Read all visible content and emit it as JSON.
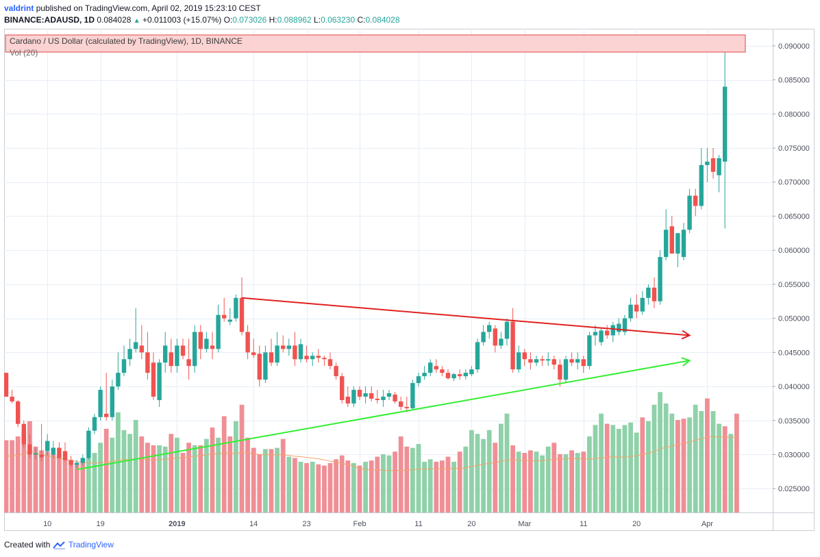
{
  "header": {
    "author": "valdrint",
    "published_text": "published on TradingView.com, April 02, 2019 15:23:10 CEST",
    "symbol": "BINANCE:ADAUSD, 1D",
    "last": "0.084028",
    "change": "+0.011003 (+15.07%)",
    "o_label": "O:",
    "o_value": "0.073026",
    "h_label": "H:",
    "h_value": "0.088962",
    "l_label": "L:",
    "l_value": "0.063230",
    "c_label": "C:",
    "c_value": "0.084028"
  },
  "legend": {
    "series_title": "Cardano / US Dollar (calculated by TradingView), 1D, BINANCE",
    "vol_title": "Vol (20)"
  },
  "footer": {
    "created_with": "Created with",
    "brand": "TradingView"
  },
  "colors": {
    "up": "#26a69a",
    "down": "#ef5350",
    "vol_up": "#8fd1a9",
    "vol_down": "#ef8f95",
    "resistance": "#e02020",
    "support": "#33ee33",
    "ma": "#f5a26a",
    "grid": "#e6eef6",
    "legend_bg": "#fbd3d3",
    "legend_border": "#e04646"
  },
  "chart_data": {
    "type": "candlestick",
    "title": "Cardano / US Dollar (calculated by TradingView), 1D, BINANCE",
    "xlabel": "",
    "ylabel": "",
    "ylim": [
      0.0215,
      0.0925
    ],
    "y_ticks": [
      "0.090000",
      "0.085000",
      "0.080000",
      "0.075000",
      "0.070000",
      "0.065000",
      "0.060000",
      "0.055000",
      "0.050000",
      "0.045000",
      "0.040000",
      "0.035000",
      "0.030000",
      "0.025000"
    ],
    "x_ticks": [
      {
        "label": "10",
        "i": 7
      },
      {
        "label": "19",
        "i": 16
      },
      {
        "label": "2019",
        "i": 29,
        "bold": true
      },
      {
        "label": "14",
        "i": 42
      },
      {
        "label": "23",
        "i": 51
      },
      {
        "label": "Feb",
        "i": 60
      },
      {
        "label": "11",
        "i": 70
      },
      {
        "label": "20",
        "i": 79
      },
      {
        "label": "Mar",
        "i": 88
      },
      {
        "label": "11",
        "i": 98
      },
      {
        "label": "20",
        "i": 107
      },
      {
        "label": "Apr",
        "i": 119
      }
    ],
    "candles": [
      [
        0.042,
        0.042,
        0.0385,
        0.0385
      ],
      [
        0.0385,
        0.0395,
        0.0375,
        0.0378
      ],
      [
        0.0378,
        0.038,
        0.034,
        0.0345
      ],
      [
        0.0345,
        0.035,
        0.031,
        0.0315
      ],
      [
        0.0315,
        0.033,
        0.0295,
        0.03
      ],
      [
        0.03,
        0.031,
        0.0293,
        0.0302
      ],
      [
        0.03,
        0.0345,
        0.029,
        0.0296
      ],
      [
        0.0305,
        0.033,
        0.0298,
        0.032
      ],
      [
        0.03,
        0.032,
        0.0295,
        0.031
      ],
      [
        0.031,
        0.0318,
        0.0293,
        0.0295
      ],
      [
        0.0305,
        0.0318,
        0.029,
        0.0292
      ],
      [
        0.0292,
        0.0298,
        0.0282,
        0.0285
      ],
      [
        0.0285,
        0.0292,
        0.028,
        0.0288
      ],
      [
        0.0288,
        0.03,
        0.0284,
        0.0295
      ],
      [
        0.0295,
        0.034,
        0.0293,
        0.0335
      ],
      [
        0.0335,
        0.036,
        0.033,
        0.0355
      ],
      [
        0.0355,
        0.04,
        0.035,
        0.0395
      ],
      [
        0.036,
        0.042,
        0.035,
        0.0355
      ],
      [
        0.0355,
        0.041,
        0.035,
        0.04
      ],
      [
        0.04,
        0.045,
        0.0395,
        0.042
      ],
      [
        0.042,
        0.046,
        0.0415,
        0.044
      ],
      [
        0.044,
        0.047,
        0.043,
        0.0455
      ],
      [
        0.0455,
        0.0515,
        0.045,
        0.0465
      ],
      [
        0.046,
        0.049,
        0.044,
        0.045
      ],
      [
        0.045,
        0.048,
        0.041,
        0.042
      ],
      [
        0.0435,
        0.045,
        0.038,
        0.0385
      ],
      [
        0.038,
        0.044,
        0.037,
        0.0435
      ],
      [
        0.0435,
        0.048,
        0.042,
        0.046
      ],
      [
        0.045,
        0.047,
        0.042,
        0.043
      ],
      [
        0.043,
        0.047,
        0.042,
        0.046
      ],
      [
        0.046,
        0.047,
        0.044,
        0.0445
      ],
      [
        0.044,
        0.047,
        0.041,
        0.043
      ],
      [
        0.043,
        0.049,
        0.042,
        0.048
      ],
      [
        0.048,
        0.049,
        0.044,
        0.0455
      ],
      [
        0.0455,
        0.048,
        0.045,
        0.047
      ],
      [
        0.046,
        0.048,
        0.044,
        0.0455
      ],
      [
        0.0455,
        0.052,
        0.045,
        0.0505
      ],
      [
        0.0505,
        0.053,
        0.0495,
        0.05
      ],
      [
        0.0495,
        0.0515,
        0.049,
        0.0498
      ],
      [
        0.05,
        0.0535,
        0.0495,
        0.053
      ],
      [
        0.053,
        0.056,
        0.0475,
        0.048
      ],
      [
        0.048,
        0.049,
        0.044,
        0.045
      ],
      [
        0.045,
        0.047,
        0.0442,
        0.0446
      ],
      [
        0.0448,
        0.046,
        0.04,
        0.041
      ],
      [
        0.041,
        0.046,
        0.0405,
        0.045
      ],
      [
        0.045,
        0.047,
        0.043,
        0.0435
      ],
      [
        0.0435,
        0.048,
        0.043,
        0.046
      ],
      [
        0.046,
        0.0475,
        0.045,
        0.0455
      ],
      [
        0.0455,
        0.047,
        0.0445,
        0.046
      ],
      [
        0.046,
        0.048,
        0.043,
        0.044
      ],
      [
        0.044,
        0.047,
        0.0435,
        0.0462
      ],
      [
        0.0445,
        0.046,
        0.0435,
        0.044
      ],
      [
        0.044,
        0.045,
        0.043,
        0.0445
      ],
      [
        0.0445,
        0.0455,
        0.0435,
        0.0442
      ],
      [
        0.0442,
        0.0445,
        0.043,
        0.044
      ],
      [
        0.044,
        0.045,
        0.0425,
        0.043
      ],
      [
        0.043,
        0.0435,
        0.041,
        0.0415
      ],
      [
        0.0415,
        0.042,
        0.0375,
        0.038
      ],
      [
        0.0385,
        0.04,
        0.037,
        0.0375
      ],
      [
        0.0375,
        0.04,
        0.037,
        0.0395
      ],
      [
        0.0395,
        0.04,
        0.038,
        0.0385
      ],
      [
        0.0385,
        0.04,
        0.0375,
        0.039
      ],
      [
        0.039,
        0.04,
        0.0378,
        0.0382
      ],
      [
        0.0382,
        0.0395,
        0.0375,
        0.038
      ],
      [
        0.038,
        0.0395,
        0.037,
        0.0385
      ],
      [
        0.0385,
        0.0395,
        0.038,
        0.039
      ],
      [
        0.0388,
        0.0392,
        0.0375,
        0.0378
      ],
      [
        0.0378,
        0.0385,
        0.0365,
        0.037
      ],
      [
        0.037,
        0.0385,
        0.0362,
        0.0368
      ],
      [
        0.0368,
        0.041,
        0.0365,
        0.0405
      ],
      [
        0.0405,
        0.042,
        0.04,
        0.0415
      ],
      [
        0.0415,
        0.043,
        0.041,
        0.042
      ],
      [
        0.042,
        0.044,
        0.0415,
        0.0435
      ],
      [
        0.043,
        0.044,
        0.042,
        0.0425
      ],
      [
        0.0425,
        0.043,
        0.0415,
        0.042
      ],
      [
        0.042,
        0.0425,
        0.041,
        0.0412
      ],
      [
        0.0412,
        0.042,
        0.0408,
        0.0418
      ],
      [
        0.0418,
        0.0425,
        0.041,
        0.0415
      ],
      [
        0.0415,
        0.0425,
        0.041,
        0.042
      ],
      [
        0.0418,
        0.043,
        0.0415,
        0.0425
      ],
      [
        0.0425,
        0.047,
        0.042,
        0.0465
      ],
      [
        0.0465,
        0.049,
        0.046,
        0.048
      ],
      [
        0.048,
        0.0495,
        0.047,
        0.049
      ],
      [
        0.0485,
        0.049,
        0.045,
        0.046
      ],
      [
        0.046,
        0.048,
        0.0455,
        0.047
      ],
      [
        0.047,
        0.05,
        0.046,
        0.0495
      ],
      [
        0.0495,
        0.0515,
        0.042,
        0.0425
      ],
      [
        0.0425,
        0.046,
        0.042,
        0.045
      ],
      [
        0.045,
        0.0455,
        0.043,
        0.044
      ],
      [
        0.044,
        0.045,
        0.0425,
        0.0435
      ],
      [
        0.0435,
        0.0445,
        0.043,
        0.044
      ],
      [
        0.044,
        0.0445,
        0.043,
        0.0438
      ],
      [
        0.0438,
        0.045,
        0.043,
        0.044
      ],
      [
        0.044,
        0.0445,
        0.0425,
        0.0432
      ],
      [
        0.0432,
        0.044,
        0.04,
        0.041
      ],
      [
        0.041,
        0.0445,
        0.0405,
        0.044
      ],
      [
        0.044,
        0.045,
        0.043,
        0.0435
      ],
      [
        0.0435,
        0.045,
        0.0425,
        0.044
      ],
      [
        0.044,
        0.0445,
        0.042,
        0.043
      ],
      [
        0.043,
        0.048,
        0.0425,
        0.0475
      ],
      [
        0.0475,
        0.049,
        0.046,
        0.048
      ],
      [
        0.0465,
        0.0485,
        0.046,
        0.0482
      ],
      [
        0.0482,
        0.049,
        0.047,
        0.0475
      ],
      [
        0.0475,
        0.0495,
        0.0465,
        0.049
      ],
      [
        0.048,
        0.05,
        0.0475,
        0.0492
      ],
      [
        0.048,
        0.0505,
        0.0475,
        0.05
      ],
      [
        0.05,
        0.053,
        0.0495,
        0.052
      ],
      [
        0.052,
        0.0535,
        0.05,
        0.051
      ],
      [
        0.051,
        0.054,
        0.0505,
        0.053
      ],
      [
        0.053,
        0.055,
        0.052,
        0.0545
      ],
      [
        0.0545,
        0.056,
        0.0515,
        0.0525
      ],
      [
        0.0525,
        0.06,
        0.052,
        0.059
      ],
      [
        0.059,
        0.066,
        0.0585,
        0.063
      ],
      [
        0.0635,
        0.065,
        0.06,
        0.0595
      ],
      [
        0.0595,
        0.0625,
        0.0575,
        0.0625
      ],
      [
        0.059,
        0.064,
        0.0585,
        0.063
      ],
      [
        0.063,
        0.069,
        0.0625,
        0.068
      ],
      [
        0.068,
        0.069,
        0.065,
        0.0665
      ],
      [
        0.0665,
        0.075,
        0.066,
        0.0725
      ],
      [
        0.0725,
        0.075,
        0.07,
        0.073
      ],
      [
        0.0735,
        0.075,
        0.0705,
        0.0715
      ],
      [
        0.071,
        0.074,
        0.0685,
        0.0735
      ],
      [
        0.073,
        0.089,
        0.0632,
        0.084
      ]
    ],
    "volume_up": [
      false,
      false,
      false,
      false,
      false,
      false,
      false,
      false,
      false,
      false,
      false,
      false,
      false,
      false,
      true,
      true,
      true,
      false,
      true,
      true,
      true,
      true,
      true,
      false,
      false,
      false,
      true,
      true,
      false,
      true,
      false,
      false,
      true,
      false,
      true,
      false,
      true,
      false,
      false,
      true,
      false,
      false,
      false,
      false,
      true,
      false,
      true,
      false,
      true,
      false,
      true,
      false,
      true,
      false,
      false,
      false,
      false,
      false,
      false,
      true,
      false,
      true,
      false,
      false,
      true,
      true,
      false,
      false,
      false,
      true,
      true,
      true,
      true,
      false,
      false,
      false,
      true,
      false,
      true,
      true,
      true,
      true,
      true,
      false,
      true,
      true,
      false,
      true,
      false,
      false,
      true,
      true,
      true,
      false,
      false,
      true,
      false,
      true,
      false,
      true,
      true,
      true,
      false,
      true,
      true,
      true,
      true,
      true,
      false,
      true,
      true,
      true,
      true,
      true,
      false,
      false,
      true,
      true,
      true,
      false,
      true,
      true,
      false,
      true
    ],
    "volume_level": [
      0.57,
      0.57,
      0.6,
      0.64,
      0.72,
      0.52,
      0.49,
      0.48,
      0.46,
      0.44,
      0.42,
      0.4,
      0.39,
      0.4,
      0.43,
      0.47,
      0.55,
      0.66,
      0.59,
      0.79,
      0.65,
      0.62,
      0.73,
      0.6,
      0.55,
      0.53,
      0.53,
      0.52,
      0.62,
      0.59,
      0.47,
      0.55,
      0.53,
      0.53,
      0.58,
      0.67,
      0.59,
      0.76,
      0.6,
      0.72,
      0.85,
      0.59,
      0.51,
      0.46,
      0.5,
      0.5,
      0.51,
      0.58,
      0.44,
      0.43,
      0.4,
      0.39,
      0.4,
      0.38,
      0.37,
      0.39,
      0.42,
      0.45,
      0.41,
      0.39,
      0.37,
      0.4,
      0.41,
      0.44,
      0.46,
      0.45,
      0.48,
      0.6,
      0.52,
      0.51,
      0.54,
      0.4,
      0.42,
      0.4,
      0.41,
      0.44,
      0.4,
      0.48,
      0.52,
      0.65,
      0.62,
      0.58,
      0.65,
      0.55,
      0.7,
      0.78,
      0.53,
      0.48,
      0.47,
      0.49,
      0.48,
      0.45,
      0.52,
      0.55,
      0.46,
      0.46,
      0.49,
      0.47,
      0.48,
      0.6,
      0.69,
      0.78,
      0.7,
      0.69,
      0.66,
      0.69,
      0.71,
      0.63,
      0.75,
      0.72,
      0.85,
      0.95,
      0.86,
      0.78,
      0.73,
      0.74,
      0.75,
      0.85,
      0.8,
      0.9,
      0.8,
      0.7,
      0.68,
      0.62,
      0.78
    ],
    "annotations": [
      {
        "type": "trendline",
        "name": "resistance",
        "from": {
          "i": 40,
          "price": 0.053
        },
        "to": {
          "i": 116,
          "price": 0.0475
        },
        "arrow": true
      },
      {
        "type": "trendline",
        "name": "support",
        "from": {
          "i": 12,
          "price": 0.0278
        },
        "to": {
          "i": 116,
          "price": 0.0438
        },
        "arrow": true
      }
    ]
  }
}
